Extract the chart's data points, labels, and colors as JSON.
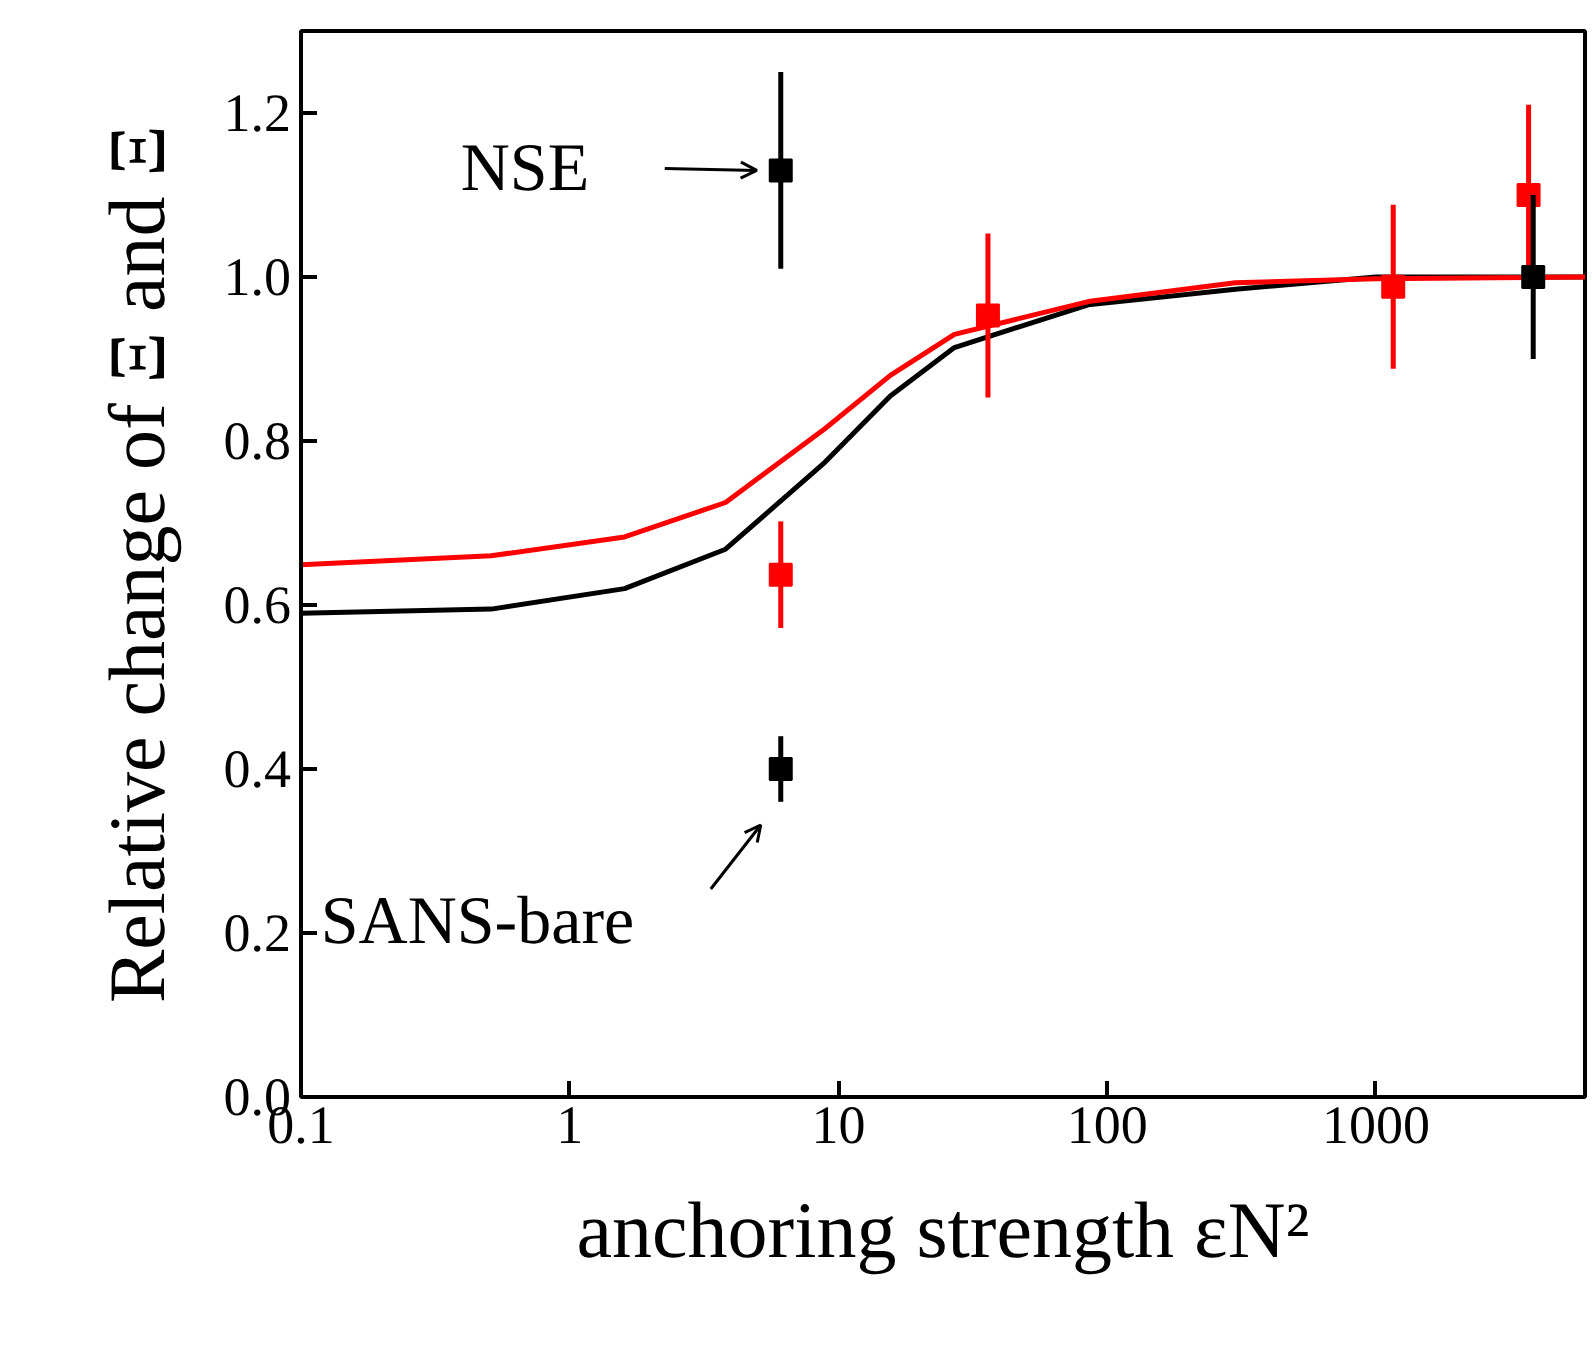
{
  "chart_data": {
    "type": "scatter",
    "xlabel": "anchoring strength εN²",
    "ylabel": "Relative change of Ξ and Ξ",
    "log": "x",
    "grid": false,
    "xlim": [
      0.1,
      6000
    ],
    "ylim": [
      0,
      1.3
    ],
    "xticks": [
      {
        "value": 0.1,
        "label": "0.1"
      },
      1,
      10,
      100,
      1000
    ],
    "yticks": [
      {
        "value": 0,
        "label": "0.0"
      },
      0.2,
      0.4,
      0.6,
      0.8,
      {
        "value": 1,
        "label": "1.0"
      },
      1.2
    ],
    "series": [
      {
        "type": "line",
        "color": "#000000",
        "line_style": "solid",
        "x": [
          0.1,
          0.51,
          1.6,
          3.8,
          8.9,
          15.6,
          27,
          85,
          300,
          1000,
          6000
        ],
        "values": [
          0.59,
          0.595,
          0.62,
          0.668,
          0.774,
          0.855,
          0.914,
          0.966,
          0.985,
          1.0,
          1.0
        ]
      },
      {
        "type": "line",
        "color": "#ff0000",
        "line_style": "solid",
        "x": [
          0.1,
          0.51,
          1.6,
          3.8,
          8.9,
          15.6,
          27,
          85,
          300,
          1000,
          6000
        ],
        "values": [
          0.649,
          0.66,
          0.683,
          0.725,
          0.815,
          0.88,
          0.93,
          0.97,
          0.993,
          0.998,
          1.0
        ]
      },
      {
        "marker": "square",
        "color": "#ff0000",
        "x": [
          6.1,
          36,
          1160,
          3700
        ],
        "values": [
          0.637,
          0.953,
          0.988,
          1.1
        ],
        "errors": [
          0.065,
          0.1,
          0.1,
          0.11
        ]
      },
      {
        "marker": "square",
        "color": "#000000",
        "x": [
          6.1,
          6.1,
          3850
        ],
        "values": [
          1.13,
          0.4,
          1.0
        ],
        "errors": [
          0.12,
          0.04,
          0.1
        ]
      }
    ],
    "annotations": [
      {
        "text": "NSE",
        "x": 6.1,
        "y": 1.13
      },
      {
        "text": "SANS-bare",
        "x": 6.1,
        "y": 0.4
      }
    ]
  }
}
